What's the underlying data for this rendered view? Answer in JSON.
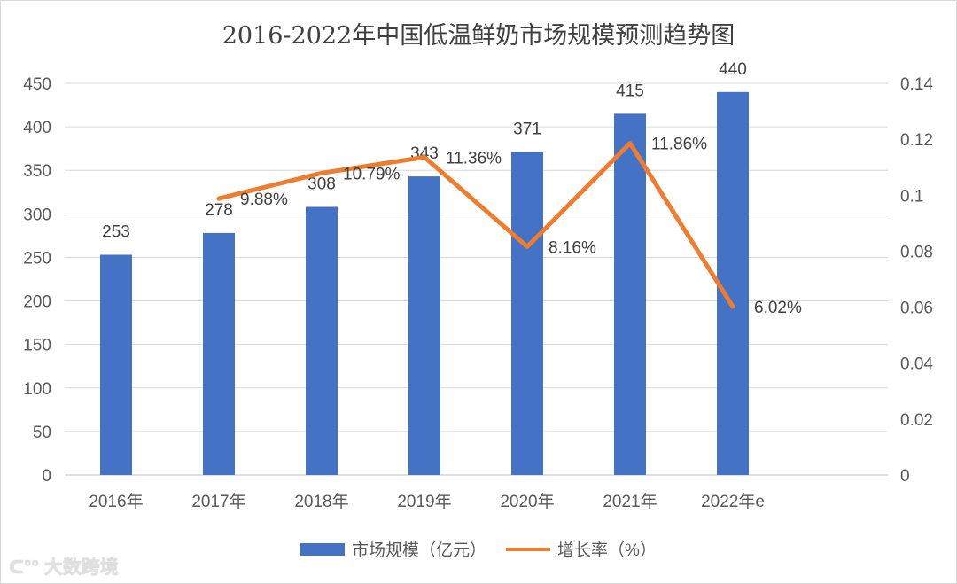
{
  "chart_data": {
    "type": "bar+line",
    "title": "2016-2022年中国低温鲜奶市场规模预测趋势图",
    "categories": [
      "2016年",
      "2017年",
      "2018年",
      "2019年",
      "2020年",
      "2021年",
      "2022年e"
    ],
    "series": [
      {
        "name": "市场规模（亿元）",
        "type": "bar",
        "axis": "left",
        "color": "#4472c4",
        "values": [
          253,
          278,
          308,
          343,
          371,
          415,
          440
        ],
        "labels": [
          "253",
          "278",
          "308",
          "343",
          "371",
          "415",
          "440"
        ]
      },
      {
        "name": "增长率（%）",
        "type": "line",
        "axis": "right",
        "color": "#ed7d31",
        "values": [
          null,
          0.0988,
          0.1079,
          0.1136,
          0.0816,
          0.1186,
          0.0602
        ],
        "labels": [
          "",
          "9.88%",
          "10.79%",
          "11.36%",
          "8.16%",
          "11.86%",
          "6.02%"
        ]
      }
    ],
    "ylim_left": [
      0,
      450
    ],
    "yticks_left": [
      "0",
      "50",
      "100",
      "150",
      "200",
      "250",
      "300",
      "350",
      "400",
      "450"
    ],
    "ylim_right": [
      0,
      0.14
    ],
    "yticks_right": [
      "0",
      "0.02",
      "0.04",
      "0.06",
      "0.08",
      "0.1",
      "0.12",
      "0.14"
    ],
    "grid": true,
    "legend_placement": "bottom"
  },
  "watermark": "大数跨境"
}
